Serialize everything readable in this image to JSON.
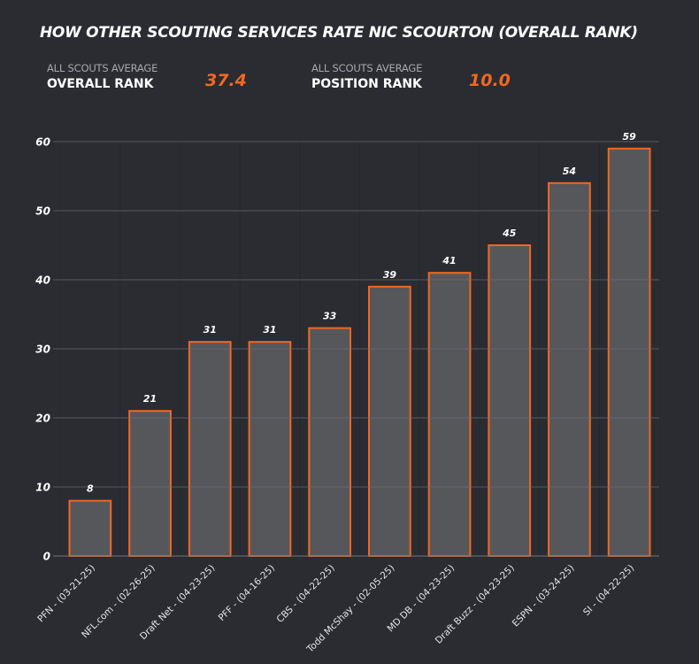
{
  "header": {
    "title": "HOW OTHER SCOUTING SERVICES RATE NIC SCOURTON (OVERALL RANK)"
  },
  "stats": [
    {
      "sub_label": "ALL SCOUTS AVERAGE",
      "label": "OVERALL RANK",
      "value": "37.4"
    },
    {
      "sub_label": "ALL SCOUTS AVERAGE",
      "label": "POSITION RANK",
      "value": "10.0"
    }
  ],
  "colors": {
    "accent": "#f26722",
    "bar_fill": "#56575b",
    "background": "#2a2c31",
    "gridline": "#4a4c50"
  },
  "chart_data": {
    "type": "bar",
    "title": "HOW OTHER SCOUTING SERVICES RATE NIC SCOURTON (OVERALL RANK)",
    "xlabel": "",
    "ylabel": "",
    "categories": [
      "PFN - (03-21-25)",
      "NFL.com - (02-26-25)",
      "Draft Net - (04-23-25)",
      "PFF - (04-16-25)",
      "CBS - (04-22-25)",
      "Todd McShay - (02-05-25)",
      "MD DB - (04-23-25)",
      "Draft Buzz - (04-23-25)",
      "ESPN - (03-24-25)",
      "SI - (04-22-25)"
    ],
    "values": [
      8,
      21,
      31,
      31,
      33,
      39,
      41,
      45,
      54,
      59
    ],
    "ylim": [
      0,
      60
    ],
    "yticks": [
      0,
      10,
      20,
      30,
      40,
      50,
      60
    ],
    "grid": true,
    "legend": "none",
    "data_labels": true
  }
}
